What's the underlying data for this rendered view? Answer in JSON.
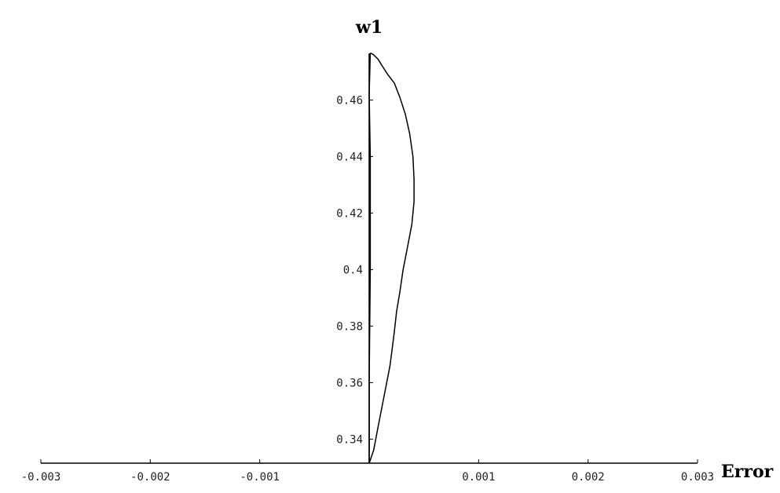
{
  "chart_data": {
    "type": "line",
    "title": "",
    "xlabel": "Error",
    "ylabel": "w1",
    "xlim": [
      -0.003,
      0.003
    ],
    "ylim": [
      0.3315,
      0.4765
    ],
    "x_ticks": [
      -0.003,
      -0.002,
      -0.001,
      0.001,
      0.002,
      0.003
    ],
    "x_tick_labels": [
      "-0.003",
      "-0.002",
      "-0.001",
      "0.001",
      "0.002",
      "0.003"
    ],
    "y_ticks": [
      0.34,
      0.36,
      0.38,
      0.4,
      0.42,
      0.44,
      0.46
    ],
    "y_tick_labels": [
      "0.34",
      "0.36",
      "0.38",
      "0.4",
      "0.42",
      "0.44",
      "0.46"
    ],
    "grid": false,
    "legend": "none",
    "line_color": "#000000",
    "series": [
      {
        "x": [
          0,
          4e-05,
          8e-05,
          0.00011,
          0.00013,
          0.00015,
          0.00017,
          0.00019,
          0.00021,
          0.00023,
          0.00025,
          0.00028,
          0.00031,
          0.00035,
          0.00039,
          0.00041,
          0.00041,
          0.0004,
          0.00037,
          0.00033,
          0.00028,
          0.00023,
          0.00017,
          0.00012,
          8e-05,
          4e-05,
          2e-05,
          1e-05,
          0,
          1e-05,
          1e-05,
          0,
          0
        ],
        "y": [
          0.3315,
          0.336,
          0.344,
          0.35,
          0.354,
          0.358,
          0.362,
          0.366,
          0.372,
          0.378,
          0.385,
          0.392,
          0.4,
          0.408,
          0.416,
          0.424,
          0.432,
          0.44,
          0.448,
          0.455,
          0.461,
          0.466,
          0.469,
          0.472,
          0.4745,
          0.476,
          0.4765,
          0.4765,
          0.462,
          0.44,
          0.4,
          0.36,
          0.3315
        ]
      }
    ]
  }
}
